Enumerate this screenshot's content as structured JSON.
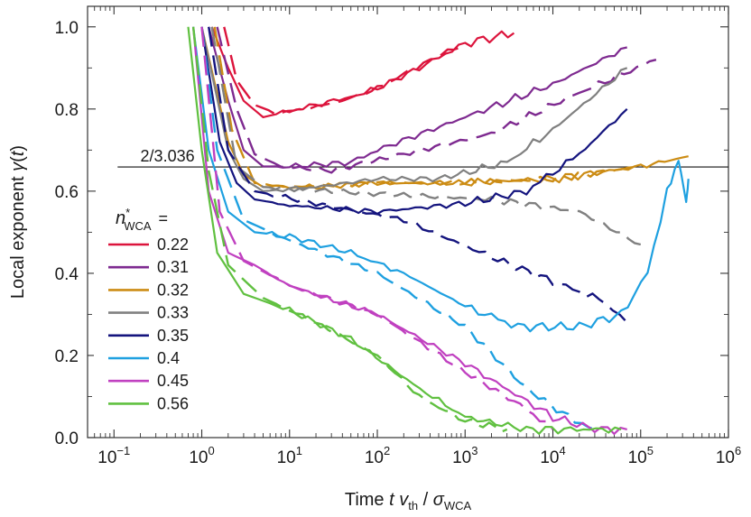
{
  "chart_data": {
    "type": "line",
    "xscale": "log",
    "xlim": [
      0.05,
      1000000
    ],
    "ylim": [
      0,
      1.05
    ],
    "xlabel": "Time t v_th / σ_WCA",
    "xlabel_parts": {
      "time": "Time ",
      "t": "t",
      "v": "v",
      "th": "th",
      "slash": " / ",
      "sigma": "σ",
      "wca": "WCA"
    },
    "ylabel": "Local exponent γ(t)",
    "ylabel_parts": {
      "text": "Local exponent ",
      "gamma": "γ",
      "open": "(",
      "t": "t",
      "close": ")"
    },
    "x_ticks": [
      {
        "value": 0.1,
        "base": "10",
        "exp": "−1"
      },
      {
        "value": 1,
        "base": "10",
        "exp": "0"
      },
      {
        "value": 10,
        "base": "10",
        "exp": "1"
      },
      {
        "value": 100,
        "base": "10",
        "exp": "2"
      },
      {
        "value": 1000,
        "base": "10",
        "exp": "3"
      },
      {
        "value": 10000,
        "base": "10",
        "exp": "4"
      },
      {
        "value": 100000,
        "base": "10",
        "exp": "5"
      },
      {
        "value": 1000000,
        "base": "10",
        "exp": "6"
      }
    ],
    "y_ticks": [
      {
        "value": 0.0,
        "label": "0.0"
      },
      {
        "value": 0.2,
        "label": "0.2"
      },
      {
        "value": 0.4,
        "label": "0.4"
      },
      {
        "value": 0.6,
        "label": "0.6"
      },
      {
        "value": 0.8,
        "label": "0.8"
      },
      {
        "value": 1.0,
        "label": "1.0"
      }
    ],
    "reference_line": {
      "y": 0.6588,
      "label": "2/3.036"
    },
    "legend": {
      "placement": "left",
      "title_n": "n",
      "title_star": "*",
      "title_sub": "WCA",
      "title_eq": "="
    },
    "series": [
      {
        "name": "0.22",
        "color": "#dc143c",
        "solid": [
          [
            1.3,
            1.0
          ],
          [
            2,
            0.9
          ],
          [
            3,
            0.82
          ],
          [
            5,
            0.78
          ],
          [
            10,
            0.795
          ],
          [
            20,
            0.81
          ],
          [
            50,
            0.83
          ],
          [
            100,
            0.85
          ],
          [
            300,
            0.9
          ],
          [
            1000,
            0.96
          ],
          [
            3600,
            0.985
          ]
        ],
        "dashed": [
          [
            1.8,
            1.0
          ],
          [
            2.5,
            0.87
          ],
          [
            4,
            0.81
          ],
          [
            7,
            0.79
          ],
          [
            15,
            0.8
          ],
          [
            40,
            0.82
          ],
          [
            100,
            0.85
          ],
          [
            400,
            0.92
          ],
          [
            1000,
            0.96
          ]
        ]
      },
      {
        "name": "0.31",
        "color": "#7e2a90",
        "solid": [
          [
            1.2,
            1.0
          ],
          [
            2,
            0.82
          ],
          [
            3,
            0.7
          ],
          [
            5,
            0.66
          ],
          [
            10,
            0.66
          ],
          [
            50,
            0.67
          ],
          [
            100,
            0.7
          ],
          [
            1000,
            0.78
          ],
          [
            10000,
            0.86
          ],
          [
            70000,
            0.95
          ]
        ],
        "dashed": [
          [
            1.5,
            1.0
          ],
          [
            2.5,
            0.8
          ],
          [
            4,
            0.69
          ],
          [
            8,
            0.66
          ],
          [
            30,
            0.65
          ],
          [
            200,
            0.69
          ],
          [
            2000,
            0.74
          ],
          [
            20000,
            0.84
          ],
          [
            150000,
            0.92
          ]
        ]
      },
      {
        "name": "0.32",
        "color": "#cc8c14",
        "solid": [
          [
            1.0,
            1.0
          ],
          [
            2,
            0.72
          ],
          [
            3,
            0.64
          ],
          [
            5,
            0.61
          ],
          [
            20,
            0.61
          ],
          [
            100,
            0.62
          ],
          [
            1000,
            0.62
          ],
          [
            10000,
            0.63
          ],
          [
            100000,
            0.66
          ],
          [
            350000,
            0.685
          ]
        ],
        "dashed": [
          [
            1.4,
            1.0
          ],
          [
            2.2,
            0.75
          ],
          [
            4,
            0.62
          ],
          [
            10,
            0.61
          ],
          [
            100,
            0.62
          ],
          [
            1000,
            0.62
          ],
          [
            10000,
            0.63
          ],
          [
            100000,
            0.66
          ]
        ]
      },
      {
        "name": "0.33",
        "color": "#808080",
        "solid": [
          [
            1.0,
            1.0
          ],
          [
            2,
            0.7
          ],
          [
            3,
            0.63
          ],
          [
            5,
            0.6
          ],
          [
            20,
            0.61
          ],
          [
            100,
            0.63
          ],
          [
            500,
            0.63
          ],
          [
            3000,
            0.67
          ],
          [
            10000,
            0.75
          ],
          [
            70000,
            0.9
          ]
        ],
        "dashed": [
          [
            1.3,
            1.0
          ],
          [
            2.5,
            0.66
          ],
          [
            5,
            0.61
          ],
          [
            30,
            0.6
          ],
          [
            200,
            0.59
          ],
          [
            2000,
            0.58
          ],
          [
            20000,
            0.55
          ],
          [
            100000,
            0.47
          ]
        ]
      },
      {
        "name": "0.35",
        "color": "#14147e",
        "solid": [
          [
            1.0,
            1.0
          ],
          [
            1.6,
            0.72
          ],
          [
            2.5,
            0.62
          ],
          [
            4,
            0.58
          ],
          [
            10,
            0.565
          ],
          [
            100,
            0.55
          ],
          [
            1000,
            0.57
          ],
          [
            5000,
            0.6
          ],
          [
            20000,
            0.69
          ],
          [
            70000,
            0.8
          ]
        ],
        "dashed": [
          [
            1.2,
            1.0
          ],
          [
            2,
            0.7
          ],
          [
            4,
            0.6
          ],
          [
            20,
            0.57
          ],
          [
            200,
            0.53
          ],
          [
            2000,
            0.44
          ],
          [
            10000,
            0.38
          ],
          [
            40000,
            0.33
          ],
          [
            70000,
            0.28
          ]
        ]
      },
      {
        "name": "0.4",
        "color": "#1ea0e0",
        "solid": [
          [
            0.8,
            1.0
          ],
          [
            1.2,
            0.7
          ],
          [
            2,
            0.55
          ],
          [
            4,
            0.5
          ],
          [
            10,
            0.49
          ],
          [
            50,
            0.45
          ],
          [
            200,
            0.4
          ],
          [
            1000,
            0.32
          ],
          [
            4000,
            0.27
          ],
          [
            20000,
            0.27
          ],
          [
            60000,
            0.3
          ],
          [
            120000,
            0.4
          ],
          [
            200000,
            0.6
          ],
          [
            270000,
            0.68
          ],
          [
            330000,
            0.57
          ],
          [
            350000,
            0.63
          ]
        ],
        "dashed": [
          [
            1.0,
            1.0
          ],
          [
            1.5,
            0.7
          ],
          [
            3,
            0.53
          ],
          [
            10,
            0.48
          ],
          [
            100,
            0.4
          ],
          [
            1000,
            0.27
          ],
          [
            5000,
            0.12
          ],
          [
            15000,
            0.05
          ],
          [
            30000,
            0.02
          ]
        ]
      },
      {
        "name": "0.45",
        "color": "#c040c0",
        "solid": [
          [
            0.8,
            1.0
          ],
          [
            1.2,
            0.6
          ],
          [
            2,
            0.45
          ],
          [
            4,
            0.42
          ],
          [
            10,
            0.37
          ],
          [
            100,
            0.3
          ],
          [
            1000,
            0.18
          ],
          [
            10000,
            0.05
          ],
          [
            30000,
            0.02
          ],
          [
            70000,
            0.02
          ]
        ],
        "dashed": [
          [
            1.0,
            1.0
          ],
          [
            1.6,
            0.55
          ],
          [
            3,
            0.43
          ],
          [
            10,
            0.37
          ],
          [
            100,
            0.3
          ],
          [
            1000,
            0.16
          ],
          [
            5000,
            0.07
          ],
          [
            10000,
            0.02
          ]
        ]
      },
      {
        "name": "0.56",
        "color": "#60c040",
        "solid": [
          [
            0.7,
            1.0
          ],
          [
            1.0,
            0.7
          ],
          [
            1.5,
            0.45
          ],
          [
            3,
            0.35
          ],
          [
            10,
            0.31
          ],
          [
            50,
            0.24
          ],
          [
            300,
            0.12
          ],
          [
            1000,
            0.05
          ],
          [
            5000,
            0.02
          ],
          [
            60000,
            0.02
          ]
        ],
        "dashed": [
          [
            0.8,
            1.0
          ],
          [
            1.2,
            0.65
          ],
          [
            2,
            0.42
          ],
          [
            5,
            0.34
          ],
          [
            20,
            0.28
          ],
          [
            100,
            0.2
          ],
          [
            300,
            0.1
          ],
          [
            1000,
            0.04
          ],
          [
            3000,
            0.02
          ]
        ]
      }
    ]
  }
}
